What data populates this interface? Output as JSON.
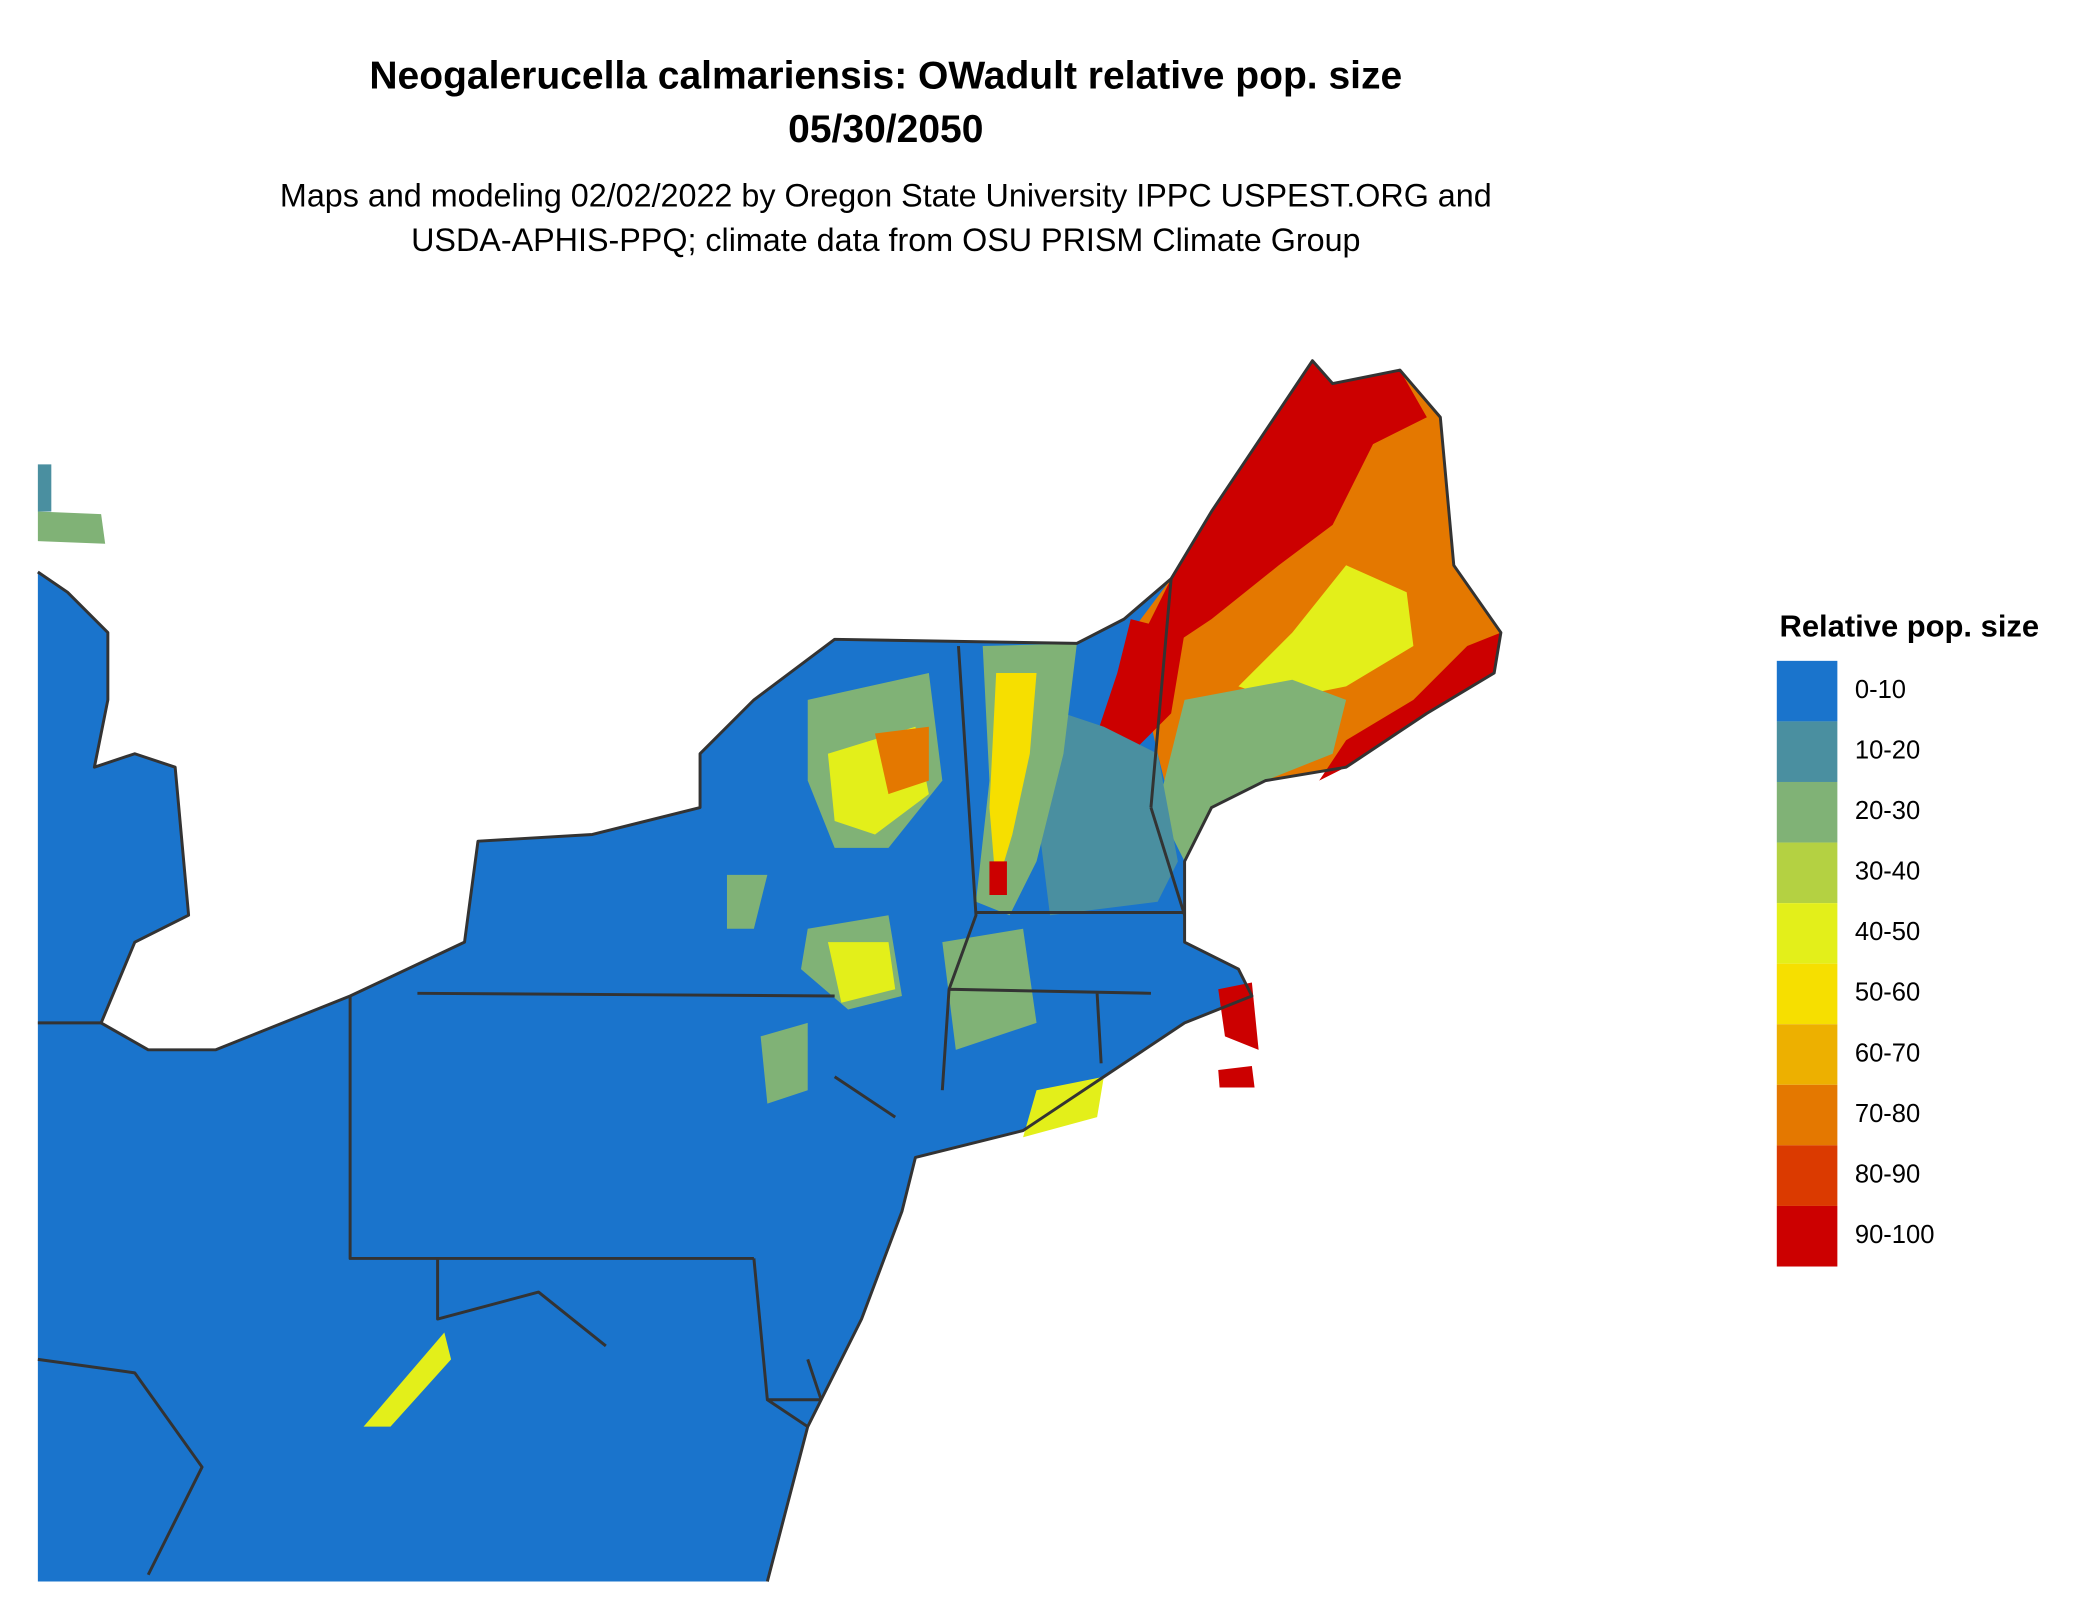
{
  "title": [
    "Neogalerucella calmariensis: OWadult relative pop. size",
    "05/30/2050"
  ],
  "subtitle": [
    "Maps and modeling 02/02/2022 by Oregon State University IPPC USPEST.ORG and",
    "USDA-APHIS-PPQ; climate data from OSU PRISM Climate Group"
  ],
  "legend": {
    "title": "Relative pop. size",
    "items": [
      {
        "label": "0-10",
        "color": "#1a74cc"
      },
      {
        "label": "10-20",
        "color": "#4a8fa0"
      },
      {
        "label": "20-30",
        "color": "#80b276"
      },
      {
        "label": "30-40",
        "color": "#b4d142"
      },
      {
        "label": "40-50",
        "color": "#e3ef1a"
      },
      {
        "label": "50-60",
        "color": "#f6df00"
      },
      {
        "label": "60-70",
        "color": "#edb000"
      },
      {
        "label": "70-80",
        "color": "#e47800"
      },
      {
        "label": "80-90",
        "color": "#db3a00"
      },
      {
        "label": "90-100",
        "color": "#cc0000"
      }
    ]
  }
}
